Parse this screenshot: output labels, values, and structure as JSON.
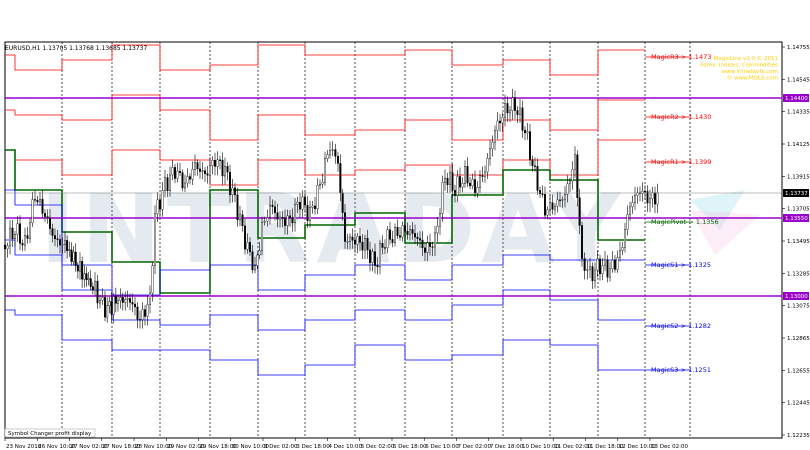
{
  "chart_header": {
    "symbol": "EURUSD,H1",
    "ohlc": "1.13705 1.13768 1.13685 1.13737"
  },
  "watermark": "INTRADAY",
  "info_text": {
    "line1": "MagicLine v2.0 © 2011",
    "line2": "Forex, Indices, Commodities",
    "line3": "www.intradayfx.com",
    "line4": "© www.MQL5.com"
  },
  "levels": [
    {
      "label": "MagicR3-> 1.1473",
      "color": "#ff0000"
    },
    {
      "label": "MagicR2-> 1.1430",
      "color": "#ff0000"
    },
    {
      "label": "MagicR1-> 1.1399",
      "color": "#ff0000"
    },
    {
      "label": "MagicPivot-> 1.1356",
      "color": "#006600"
    },
    {
      "label": "MagicS1-> 1.1325",
      "color": "#0000ff"
    },
    {
      "label": "MagicS2-> 1.1282",
      "color": "#0000ff"
    },
    {
      "label": "MagicS3-> 1.1251",
      "color": "#0000ff"
    }
  ],
  "price_axis": [
    "1.14755",
    "1.14545",
    "1.14335",
    "1.14125",
    "1.13915",
    "1.13705",
    "1.13495",
    "1.13285",
    "1.13075",
    "1.12865",
    "1.12655",
    "1.12445",
    "1.12235"
  ],
  "purple_lines": [
    {
      "price": "1.14400",
      "color": "#9900cc"
    },
    {
      "price": "1.13550",
      "color": "#9900cc"
    },
    {
      "price": "1.13000",
      "color": "#9900cc"
    }
  ],
  "current_price": "1.13737",
  "time_axis": [
    "23 Nov 2018",
    "26 Nov 10:00",
    "27 Nov 02:00",
    "27 Nov 18:00",
    "28 Nov 10:00",
    "29 Nov 02:00",
    "29 Nov 18:00",
    "30 Nov 10:00",
    "3 Dec 02:00",
    "3 Dec 18:00",
    "4 Dec 10:00",
    "5 Dec 02:00",
    "5 Dec 18:00",
    "6 Dec 10:00",
    "7 Dec 02:00",
    "7 Dec 18:00",
    "10 Dec 10:00",
    "11 Dec 02:00",
    "11 Dec 18:00",
    "12 Dec 10:00",
    "13 Dec 02:00"
  ],
  "status_bar": "Symbol Changer profit display",
  "colors": {
    "resistance": "#ff0000",
    "pivot": "#006600",
    "support": "#0000ff",
    "candles": "#000000",
    "purple": "#9900cc"
  }
}
